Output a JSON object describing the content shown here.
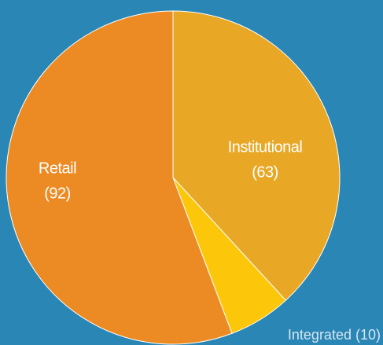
{
  "chart_data": {
    "type": "pie",
    "categories": [
      "Institutional",
      "Integrated",
      "Retail"
    ],
    "values": [
      63,
      10,
      92
    ],
    "value_labels": [
      "(63)",
      "(10)",
      "(92)"
    ],
    "colors": [
      "#e8a826",
      "#fcc70a",
      "#ec8b24"
    ]
  }
}
